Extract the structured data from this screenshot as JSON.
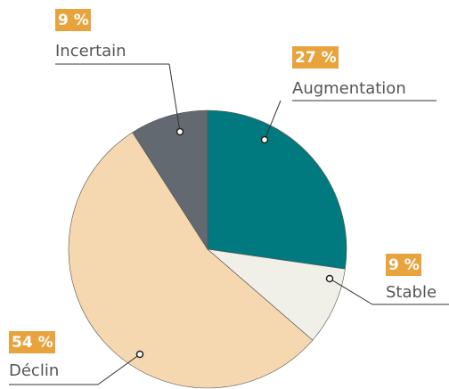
{
  "chart_data": {
    "type": "pie",
    "categories": [
      "Augmentation",
      "Stable",
      "Déclin",
      "Incertain"
    ],
    "values": [
      27,
      9,
      54,
      9
    ],
    "value_labels": [
      "27 %",
      "9 %",
      "54 %",
      "9 %"
    ],
    "colors": [
      "#007a7e",
      "#f0efe8",
      "#f5d7b0",
      "#636970"
    ]
  }
}
